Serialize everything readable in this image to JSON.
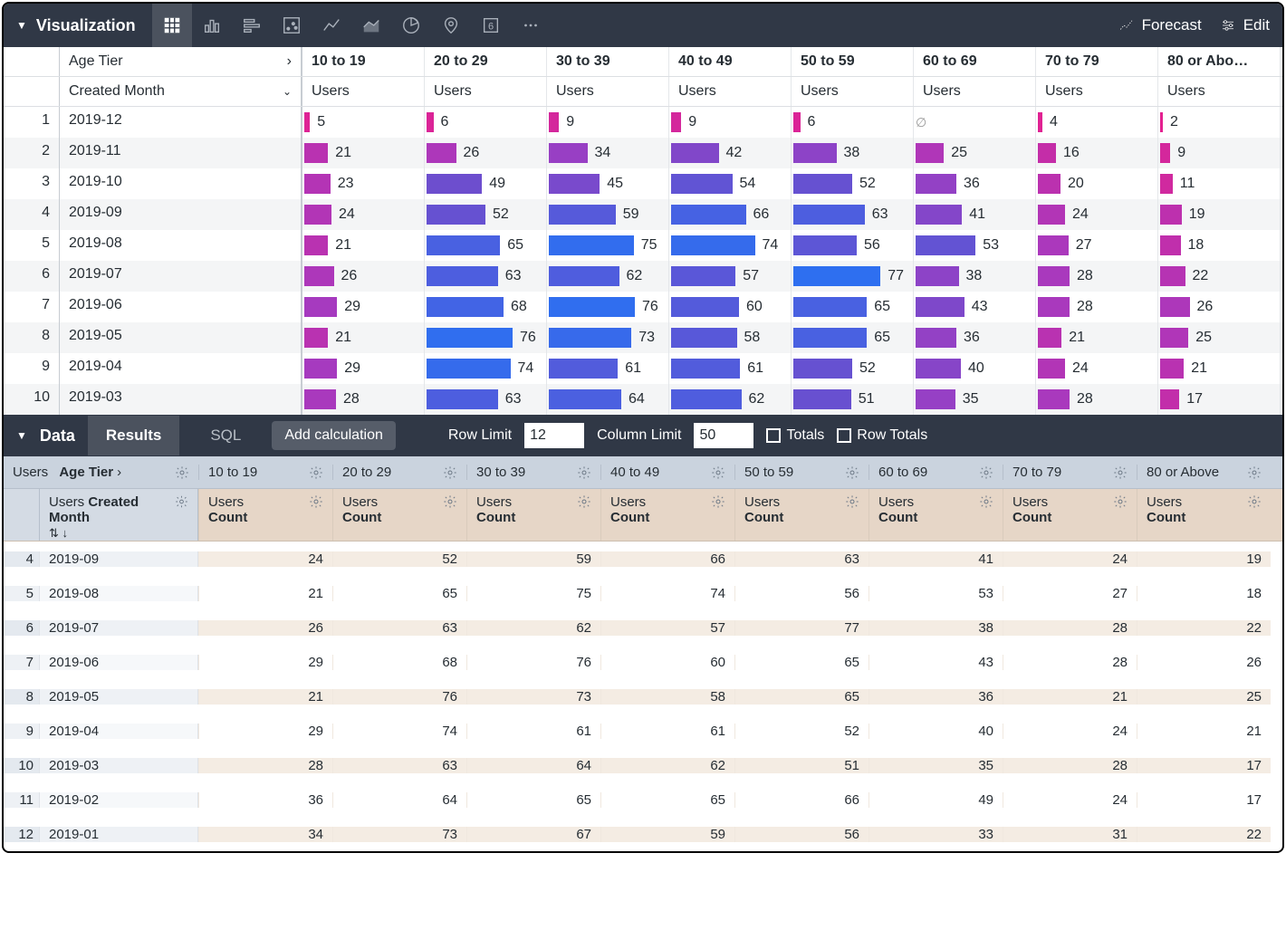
{
  "toolbar": {
    "title": "Visualization",
    "forecast_label": "Forecast",
    "edit_label": "Edit"
  },
  "viz": {
    "pivot_label": "Age Tier",
    "row_label": "Created Month",
    "measure_label": "Users",
    "columns": [
      "10 to 19",
      "20 to 29",
      "30 to 39",
      "40 to 49",
      "50 to 59",
      "60 to 69",
      "70 to 79",
      "80 or Abo…"
    ],
    "bar_max": 80,
    "color_stops": [
      {
        "v": 0,
        "c": "#e91e8c"
      },
      {
        "v": 30,
        "c": "#a43bc1"
      },
      {
        "v": 50,
        "c": "#6a4fcf"
      },
      {
        "v": 77,
        "c": "#2e6ff0"
      }
    ],
    "rows": [
      {
        "n": 1,
        "m": "2019-12",
        "v": [
          5,
          6,
          9,
          9,
          6,
          null,
          4,
          2
        ]
      },
      {
        "n": 2,
        "m": "2019-11",
        "v": [
          21,
          26,
          34,
          42,
          38,
          25,
          16,
          9
        ]
      },
      {
        "n": 3,
        "m": "2019-10",
        "v": [
          23,
          49,
          45,
          54,
          52,
          36,
          20,
          11
        ]
      },
      {
        "n": 4,
        "m": "2019-09",
        "v": [
          24,
          52,
          59,
          66,
          63,
          41,
          24,
          19
        ]
      },
      {
        "n": 5,
        "m": "2019-08",
        "v": [
          21,
          65,
          75,
          74,
          56,
          53,
          27,
          18
        ]
      },
      {
        "n": 6,
        "m": "2019-07",
        "v": [
          26,
          63,
          62,
          57,
          77,
          38,
          28,
          22
        ]
      },
      {
        "n": 7,
        "m": "2019-06",
        "v": [
          29,
          68,
          76,
          60,
          65,
          43,
          28,
          26
        ]
      },
      {
        "n": 8,
        "m": "2019-05",
        "v": [
          21,
          76,
          73,
          58,
          65,
          36,
          21,
          25
        ]
      },
      {
        "n": 9,
        "m": "2019-04",
        "v": [
          29,
          74,
          61,
          61,
          52,
          40,
          24,
          21
        ]
      },
      {
        "n": 10,
        "m": "2019-03",
        "v": [
          28,
          63,
          64,
          62,
          51,
          35,
          28,
          17
        ]
      }
    ]
  },
  "data_panel": {
    "title": "Data",
    "tabs": {
      "results": "Results",
      "sql": "SQL"
    },
    "add_calc": "Add calculation",
    "row_limit_label": "Row Limit",
    "row_limit_value": "12",
    "col_limit_label": "Column Limit",
    "col_limit_value": "50",
    "totals_label": "Totals",
    "row_totals_label": "Row Totals"
  },
  "data_table": {
    "pivot_prefix": "Users",
    "pivot_field": "Age Tier",
    "dim_prefix": "Users",
    "dim_field": "Created Month",
    "measure_prefix": "Users",
    "measure_field": "Count",
    "columns": [
      "10 to 19",
      "20 to 29",
      "30 to 39",
      "40 to 49",
      "50 to 59",
      "60 to 69",
      "70 to 79",
      "80 or Above"
    ],
    "rows": [
      {
        "n": 4,
        "m": "2019-09",
        "v": [
          24,
          52,
          59,
          66,
          63,
          41,
          24,
          19
        ]
      },
      {
        "n": 5,
        "m": "2019-08",
        "v": [
          21,
          65,
          75,
          74,
          56,
          53,
          27,
          18
        ]
      },
      {
        "n": 6,
        "m": "2019-07",
        "v": [
          26,
          63,
          62,
          57,
          77,
          38,
          28,
          22
        ]
      },
      {
        "n": 7,
        "m": "2019-06",
        "v": [
          29,
          68,
          76,
          60,
          65,
          43,
          28,
          26
        ]
      },
      {
        "n": 8,
        "m": "2019-05",
        "v": [
          21,
          76,
          73,
          58,
          65,
          36,
          21,
          25
        ]
      },
      {
        "n": 9,
        "m": "2019-04",
        "v": [
          29,
          74,
          61,
          61,
          52,
          40,
          24,
          21
        ]
      },
      {
        "n": 10,
        "m": "2019-03",
        "v": [
          28,
          63,
          64,
          62,
          51,
          35,
          28,
          17
        ]
      },
      {
        "n": 11,
        "m": "2019-02",
        "v": [
          36,
          64,
          65,
          65,
          66,
          49,
          24,
          17
        ]
      },
      {
        "n": 12,
        "m": "2019-01",
        "v": [
          34,
          73,
          67,
          59,
          56,
          33,
          31,
          22
        ]
      }
    ]
  }
}
